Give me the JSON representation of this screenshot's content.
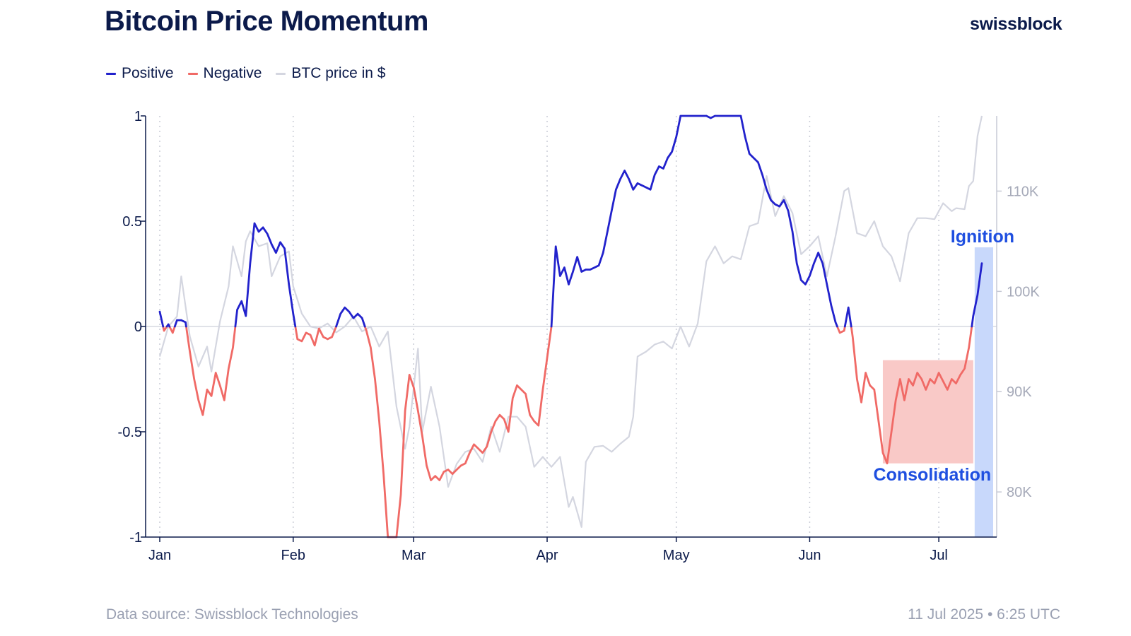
{
  "header": {
    "title": "Bitcoin Price Momentum",
    "brand": "swissblock"
  },
  "legend": [
    {
      "label": "Positive",
      "color": "#2222cc"
    },
    {
      "label": "Negative",
      "color": "#f06a66"
    },
    {
      "label": "BTC price in $",
      "color": "#d4d6e0"
    }
  ],
  "footer": {
    "source": "Data source: Swissblock Technologies",
    "date": "11 Jul 2025 • 6:25 UTC"
  },
  "chart_data": {
    "type": "line",
    "x_ticks": [
      "Jan",
      "Feb",
      "Mar",
      "Apr",
      "May",
      "Jun",
      "Jul"
    ],
    "y_left_ticks": [
      "1",
      "0.5",
      "0",
      "-0.5",
      "-1"
    ],
    "y_left_range": [
      -1,
      1
    ],
    "y_right_ticks": [
      "110K",
      "100K",
      "90K",
      "80K"
    ],
    "y_right_range": [
      75500,
      117500
    ],
    "grid": "vertical dotted at month starts",
    "legend_position": "top-left",
    "colors": {
      "positive": "#2222cc",
      "negative": "#f06a66",
      "price": "#d4d6e0",
      "consolidation_box": "#f9c9c7",
      "ignition_box": "#c8d8fb",
      "annotation": "#1f4fe0"
    },
    "annotations": {
      "consolidation": {
        "label": "Consolidation",
        "x_range": [
          "2025-06-18",
          "2025-07-09"
        ],
        "y_range": [
          -0.65,
          -0.16
        ]
      },
      "ignition": {
        "label": "Ignition",
        "x_range": [
          "2025-07-09",
          "2025-07-11"
        ]
      }
    },
    "momentum_series": {
      "name": "Momentum",
      "points": [
        [
          "2025-01-01",
          0.07
        ],
        [
          "2025-01-02",
          -0.02
        ],
        [
          "2025-01-03",
          0.01
        ],
        [
          "2025-01-04",
          -0.03
        ],
        [
          "2025-01-05",
          0.03
        ],
        [
          "2025-01-06",
          0.03
        ],
        [
          "2025-01-07",
          0.02
        ],
        [
          "2025-01-08",
          -0.12
        ],
        [
          "2025-01-09",
          -0.25
        ],
        [
          "2025-01-10",
          -0.35
        ],
        [
          "2025-01-11",
          -0.42
        ],
        [
          "2025-01-12",
          -0.3
        ],
        [
          "2025-01-13",
          -0.33
        ],
        [
          "2025-01-14",
          -0.22
        ],
        [
          "2025-01-15",
          -0.28
        ],
        [
          "2025-01-16",
          -0.35
        ],
        [
          "2025-01-17",
          -0.2
        ],
        [
          "2025-01-18",
          -0.1
        ],
        [
          "2025-01-19",
          0.08
        ],
        [
          "2025-01-20",
          0.12
        ],
        [
          "2025-01-21",
          0.05
        ],
        [
          "2025-01-22",
          0.3
        ],
        [
          "2025-01-23",
          0.49
        ],
        [
          "2025-01-24",
          0.45
        ],
        [
          "2025-01-25",
          0.47
        ],
        [
          "2025-01-26",
          0.44
        ],
        [
          "2025-01-27",
          0.39
        ],
        [
          "2025-01-28",
          0.35
        ],
        [
          "2025-01-29",
          0.4
        ],
        [
          "2025-01-30",
          0.37
        ],
        [
          "2025-01-31",
          0.2
        ],
        [
          "2025-02-01",
          0.06
        ],
        [
          "2025-02-02",
          -0.06
        ],
        [
          "2025-02-03",
          -0.07
        ],
        [
          "2025-02-04",
          -0.03
        ],
        [
          "2025-02-05",
          -0.04
        ],
        [
          "2025-02-06",
          -0.09
        ],
        [
          "2025-02-07",
          -0.01
        ],
        [
          "2025-02-08",
          -0.05
        ],
        [
          "2025-02-09",
          -0.06
        ],
        [
          "2025-02-10",
          -0.05
        ],
        [
          "2025-02-11",
          0.0
        ],
        [
          "2025-02-12",
          0.06
        ],
        [
          "2025-02-13",
          0.09
        ],
        [
          "2025-02-14",
          0.07
        ],
        [
          "2025-02-15",
          0.04
        ],
        [
          "2025-02-16",
          0.06
        ],
        [
          "2025-02-17",
          0.04
        ],
        [
          "2025-02-18",
          -0.02
        ],
        [
          "2025-02-19",
          -0.1
        ],
        [
          "2025-02-20",
          -0.25
        ],
        [
          "2025-02-21",
          -0.45
        ],
        [
          "2025-02-22",
          -0.7
        ],
        [
          "2025-02-23",
          -1.0
        ],
        [
          "2025-02-24",
          -1.0
        ],
        [
          "2025-02-25",
          -1.0
        ],
        [
          "2025-02-26",
          -0.8
        ],
        [
          "2025-02-27",
          -0.4
        ],
        [
          "2025-02-28",
          -0.23
        ],
        [
          "2025-03-01",
          -0.29
        ],
        [
          "2025-03-02",
          -0.4
        ],
        [
          "2025-03-03",
          -0.52
        ],
        [
          "2025-03-04",
          -0.66
        ],
        [
          "2025-03-05",
          -0.73
        ],
        [
          "2025-03-06",
          -0.71
        ],
        [
          "2025-03-07",
          -0.73
        ],
        [
          "2025-03-08",
          -0.69
        ],
        [
          "2025-03-09",
          -0.68
        ],
        [
          "2025-03-10",
          -0.7
        ],
        [
          "2025-03-11",
          -0.68
        ],
        [
          "2025-03-12",
          -0.66
        ],
        [
          "2025-03-13",
          -0.65
        ],
        [
          "2025-03-14",
          -0.6
        ],
        [
          "2025-03-15",
          -0.56
        ],
        [
          "2025-03-16",
          -0.58
        ],
        [
          "2025-03-17",
          -0.6
        ],
        [
          "2025-03-18",
          -0.57
        ],
        [
          "2025-03-19",
          -0.5
        ],
        [
          "2025-03-20",
          -0.45
        ],
        [
          "2025-03-21",
          -0.42
        ],
        [
          "2025-03-22",
          -0.44
        ],
        [
          "2025-03-23",
          -0.5
        ],
        [
          "2025-03-24",
          -0.34
        ],
        [
          "2025-03-25",
          -0.28
        ],
        [
          "2025-03-26",
          -0.3
        ],
        [
          "2025-03-27",
          -0.32
        ],
        [
          "2025-03-28",
          -0.42
        ],
        [
          "2025-03-29",
          -0.45
        ],
        [
          "2025-03-30",
          -0.47
        ],
        [
          "2025-03-31",
          -0.3
        ],
        [
          "2025-04-01",
          -0.15
        ],
        [
          "2025-04-02",
          0.0
        ],
        [
          "2025-04-03",
          0.38
        ],
        [
          "2025-04-04",
          0.24
        ],
        [
          "2025-04-05",
          0.28
        ],
        [
          "2025-04-06",
          0.2
        ],
        [
          "2025-04-07",
          0.26
        ],
        [
          "2025-04-08",
          0.33
        ],
        [
          "2025-04-09",
          0.26
        ],
        [
          "2025-04-10",
          0.27
        ],
        [
          "2025-04-11",
          0.27
        ],
        [
          "2025-04-12",
          0.28
        ],
        [
          "2025-04-13",
          0.29
        ],
        [
          "2025-04-14",
          0.35
        ],
        [
          "2025-04-15",
          0.45
        ],
        [
          "2025-04-16",
          0.55
        ],
        [
          "2025-04-17",
          0.65
        ],
        [
          "2025-04-18",
          0.7
        ],
        [
          "2025-04-19",
          0.74
        ],
        [
          "2025-04-20",
          0.7
        ],
        [
          "2025-04-21",
          0.65
        ],
        [
          "2025-04-22",
          0.68
        ],
        [
          "2025-04-23",
          0.67
        ],
        [
          "2025-04-24",
          0.66
        ],
        [
          "2025-04-25",
          0.65
        ],
        [
          "2025-04-26",
          0.72
        ],
        [
          "2025-04-27",
          0.76
        ],
        [
          "2025-04-28",
          0.75
        ],
        [
          "2025-04-29",
          0.8
        ],
        [
          "2025-04-30",
          0.83
        ],
        [
          "2025-05-01",
          0.9
        ],
        [
          "2025-05-02",
          1.0
        ],
        [
          "2025-05-03",
          1.0
        ],
        [
          "2025-05-04",
          1.0
        ],
        [
          "2025-05-05",
          1.0
        ],
        [
          "2025-05-06",
          1.0
        ],
        [
          "2025-05-07",
          1.0
        ],
        [
          "2025-05-08",
          1.0
        ],
        [
          "2025-05-09",
          0.99
        ],
        [
          "2025-05-10",
          1.0
        ],
        [
          "2025-05-11",
          1.0
        ],
        [
          "2025-05-12",
          1.0
        ],
        [
          "2025-05-13",
          1.0
        ],
        [
          "2025-05-14",
          1.0
        ],
        [
          "2025-05-15",
          1.0
        ],
        [
          "2025-05-16",
          1.0
        ],
        [
          "2025-05-17",
          0.9
        ],
        [
          "2025-05-18",
          0.82
        ],
        [
          "2025-05-19",
          0.8
        ],
        [
          "2025-05-20",
          0.78
        ],
        [
          "2025-05-21",
          0.72
        ],
        [
          "2025-05-22",
          0.65
        ],
        [
          "2025-05-23",
          0.6
        ],
        [
          "2025-05-24",
          0.58
        ],
        [
          "2025-05-25",
          0.57
        ],
        [
          "2025-05-26",
          0.6
        ],
        [
          "2025-05-27",
          0.55
        ],
        [
          "2025-05-28",
          0.45
        ],
        [
          "2025-05-29",
          0.3
        ],
        [
          "2025-05-30",
          0.22
        ],
        [
          "2025-05-31",
          0.2
        ],
        [
          "2025-06-01",
          0.24
        ],
        [
          "2025-06-02",
          0.3
        ],
        [
          "2025-06-03",
          0.35
        ],
        [
          "2025-06-04",
          0.3
        ],
        [
          "2025-06-05",
          0.2
        ],
        [
          "2025-06-06",
          0.1
        ],
        [
          "2025-06-07",
          0.02
        ],
        [
          "2025-06-08",
          -0.03
        ],
        [
          "2025-06-09",
          -0.02
        ],
        [
          "2025-06-10",
          0.09
        ],
        [
          "2025-06-11",
          -0.05
        ],
        [
          "2025-06-12",
          -0.25
        ],
        [
          "2025-06-13",
          -0.36
        ],
        [
          "2025-06-14",
          -0.22
        ],
        [
          "2025-06-15",
          -0.28
        ],
        [
          "2025-06-16",
          -0.3
        ],
        [
          "2025-06-17",
          -0.45
        ],
        [
          "2025-06-18",
          -0.6
        ],
        [
          "2025-06-19",
          -0.65
        ],
        [
          "2025-06-20",
          -0.5
        ],
        [
          "2025-06-21",
          -0.35
        ],
        [
          "2025-06-22",
          -0.25
        ],
        [
          "2025-06-23",
          -0.35
        ],
        [
          "2025-06-24",
          -0.25
        ],
        [
          "2025-06-25",
          -0.28
        ],
        [
          "2025-06-26",
          -0.22
        ],
        [
          "2025-06-27",
          -0.25
        ],
        [
          "2025-06-28",
          -0.3
        ],
        [
          "2025-06-29",
          -0.25
        ],
        [
          "2025-06-30",
          -0.27
        ],
        [
          "2025-07-01",
          -0.22
        ],
        [
          "2025-07-02",
          -0.26
        ],
        [
          "2025-07-03",
          -0.3
        ],
        [
          "2025-07-04",
          -0.25
        ],
        [
          "2025-07-05",
          -0.27
        ],
        [
          "2025-07-06",
          -0.23
        ],
        [
          "2025-07-07",
          -0.2
        ],
        [
          "2025-07-08",
          -0.1
        ],
        [
          "2025-07-09",
          0.05
        ],
        [
          "2025-07-10",
          0.15
        ],
        [
          "2025-07-11",
          0.3
        ]
      ]
    },
    "price_series": {
      "name": "BTC price in $",
      "points": [
        [
          "2025-01-01",
          93500
        ],
        [
          "2025-01-03",
          96500
        ],
        [
          "2025-01-05",
          97500
        ],
        [
          "2025-01-06",
          101500
        ],
        [
          "2025-01-08",
          95500
        ],
        [
          "2025-01-10",
          92500
        ],
        [
          "2025-01-12",
          94500
        ],
        [
          "2025-01-13",
          92000
        ],
        [
          "2025-01-15",
          97000
        ],
        [
          "2025-01-17",
          100500
        ],
        [
          "2025-01-18",
          104500
        ],
        [
          "2025-01-20",
          101500
        ],
        [
          "2025-01-21",
          105000
        ],
        [
          "2025-01-22",
          106000
        ],
        [
          "2025-01-24",
          104500
        ],
        [
          "2025-01-26",
          104800
        ],
        [
          "2025-01-27",
          101500
        ],
        [
          "2025-01-29",
          103500
        ],
        [
          "2025-01-31",
          104000
        ],
        [
          "2025-02-01",
          100500
        ],
        [
          "2025-02-03",
          97800
        ],
        [
          "2025-02-05",
          96500
        ],
        [
          "2025-02-07",
          96300
        ],
        [
          "2025-02-09",
          96800
        ],
        [
          "2025-02-11",
          95900
        ],
        [
          "2025-02-13",
          96500
        ],
        [
          "2025-02-15",
          97500
        ],
        [
          "2025-02-17",
          96000
        ],
        [
          "2025-02-19",
          96500
        ],
        [
          "2025-02-21",
          94500
        ],
        [
          "2025-02-23",
          96000
        ],
        [
          "2025-02-25",
          88500
        ],
        [
          "2025-02-27",
          84300
        ],
        [
          "2025-02-28",
          86500
        ],
        [
          "2025-03-02",
          94300
        ],
        [
          "2025-03-03",
          86000
        ],
        [
          "2025-03-05",
          90500
        ],
        [
          "2025-03-07",
          86500
        ],
        [
          "2025-03-09",
          80500
        ],
        [
          "2025-03-11",
          82800
        ],
        [
          "2025-03-13",
          84000
        ],
        [
          "2025-03-15",
          84300
        ],
        [
          "2025-03-17",
          83000
        ],
        [
          "2025-03-19",
          86500
        ],
        [
          "2025-03-21",
          84000
        ],
        [
          "2025-03-23",
          87500
        ],
        [
          "2025-03-25",
          87500
        ],
        [
          "2025-03-27",
          86500
        ],
        [
          "2025-03-29",
          82500
        ],
        [
          "2025-03-31",
          83500
        ],
        [
          "2025-04-02",
          82500
        ],
        [
          "2025-04-04",
          83500
        ],
        [
          "2025-04-06",
          78500
        ],
        [
          "2025-04-07",
          79500
        ],
        [
          "2025-04-09",
          76500
        ],
        [
          "2025-04-10",
          83000
        ],
        [
          "2025-04-12",
          84500
        ],
        [
          "2025-04-14",
          84600
        ],
        [
          "2025-04-16",
          84000
        ],
        [
          "2025-04-18",
          84800
        ],
        [
          "2025-04-20",
          85500
        ],
        [
          "2025-04-21",
          87500
        ],
        [
          "2025-04-22",
          93500
        ],
        [
          "2025-04-24",
          94000
        ],
        [
          "2025-04-26",
          94700
        ],
        [
          "2025-04-28",
          95000
        ],
        [
          "2025-04-30",
          94300
        ],
        [
          "2025-05-02",
          96500
        ],
        [
          "2025-05-04",
          94500
        ],
        [
          "2025-05-06",
          96800
        ],
        [
          "2025-05-08",
          103000
        ],
        [
          "2025-05-10",
          104500
        ],
        [
          "2025-05-12",
          102800
        ],
        [
          "2025-05-14",
          103500
        ],
        [
          "2025-05-16",
          103200
        ],
        [
          "2025-05-18",
          106500
        ],
        [
          "2025-05-20",
          106800
        ],
        [
          "2025-05-22",
          111500
        ],
        [
          "2025-05-24",
          107500
        ],
        [
          "2025-05-26",
          109500
        ],
        [
          "2025-05-28",
          107800
        ],
        [
          "2025-05-30",
          103700
        ],
        [
          "2025-06-01",
          104500
        ],
        [
          "2025-06-03",
          105500
        ],
        [
          "2025-06-05",
          101500
        ],
        [
          "2025-06-07",
          105500
        ],
        [
          "2025-06-09",
          110000
        ],
        [
          "2025-06-10",
          110300
        ],
        [
          "2025-06-12",
          105800
        ],
        [
          "2025-06-14",
          105500
        ],
        [
          "2025-06-16",
          107000
        ],
        [
          "2025-06-18",
          104500
        ],
        [
          "2025-06-20",
          103500
        ],
        [
          "2025-06-22",
          101000
        ],
        [
          "2025-06-24",
          105800
        ],
        [
          "2025-06-26",
          107300
        ],
        [
          "2025-06-28",
          107300
        ],
        [
          "2025-06-30",
          107200
        ],
        [
          "2025-07-02",
          108800
        ],
        [
          "2025-07-04",
          108000
        ],
        [
          "2025-07-05",
          108300
        ],
        [
          "2025-07-07",
          108200
        ],
        [
          "2025-07-08",
          110500
        ],
        [
          "2025-07-09",
          111000
        ],
        [
          "2025-07-10",
          115500
        ],
        [
          "2025-07-11",
          117500
        ]
      ]
    }
  }
}
